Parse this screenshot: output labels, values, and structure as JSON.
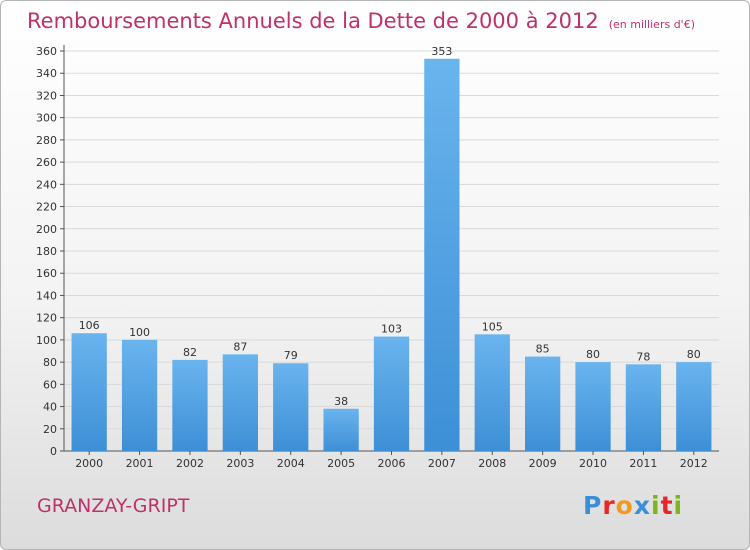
{
  "chart_data": {
    "type": "bar",
    "title": "Remboursements Annuels de la Dette de 2000 à 2012",
    "subtitle": "(en milliers d'€)",
    "xlabel": "",
    "ylabel": "",
    "categories": [
      "2000",
      "2001",
      "2002",
      "2003",
      "2004",
      "2005",
      "2006",
      "2007",
      "2008",
      "2009",
      "2010",
      "2011",
      "2012"
    ],
    "values": [
      106,
      100,
      82,
      87,
      79,
      38,
      103,
      353,
      105,
      85,
      80,
      78,
      80
    ],
    "ylim": [
      0,
      360
    ],
    "ytick_step": 20,
    "grid": true,
    "legend": "none",
    "bar_color": "#3d8fd6",
    "bar_color_light": "#6ab4ee",
    "label_color": "#333333",
    "grid_color": "#d9d9d9"
  },
  "footer": {
    "city": "GRANZAY-GRIPT",
    "logo_text": "Proxiti",
    "logo_colors": [
      "#3b8fd9",
      "#e8262a",
      "#f39a1d",
      "#3b8fd9",
      "#7ab51d",
      "#e8262a",
      "#7ab51d"
    ]
  }
}
